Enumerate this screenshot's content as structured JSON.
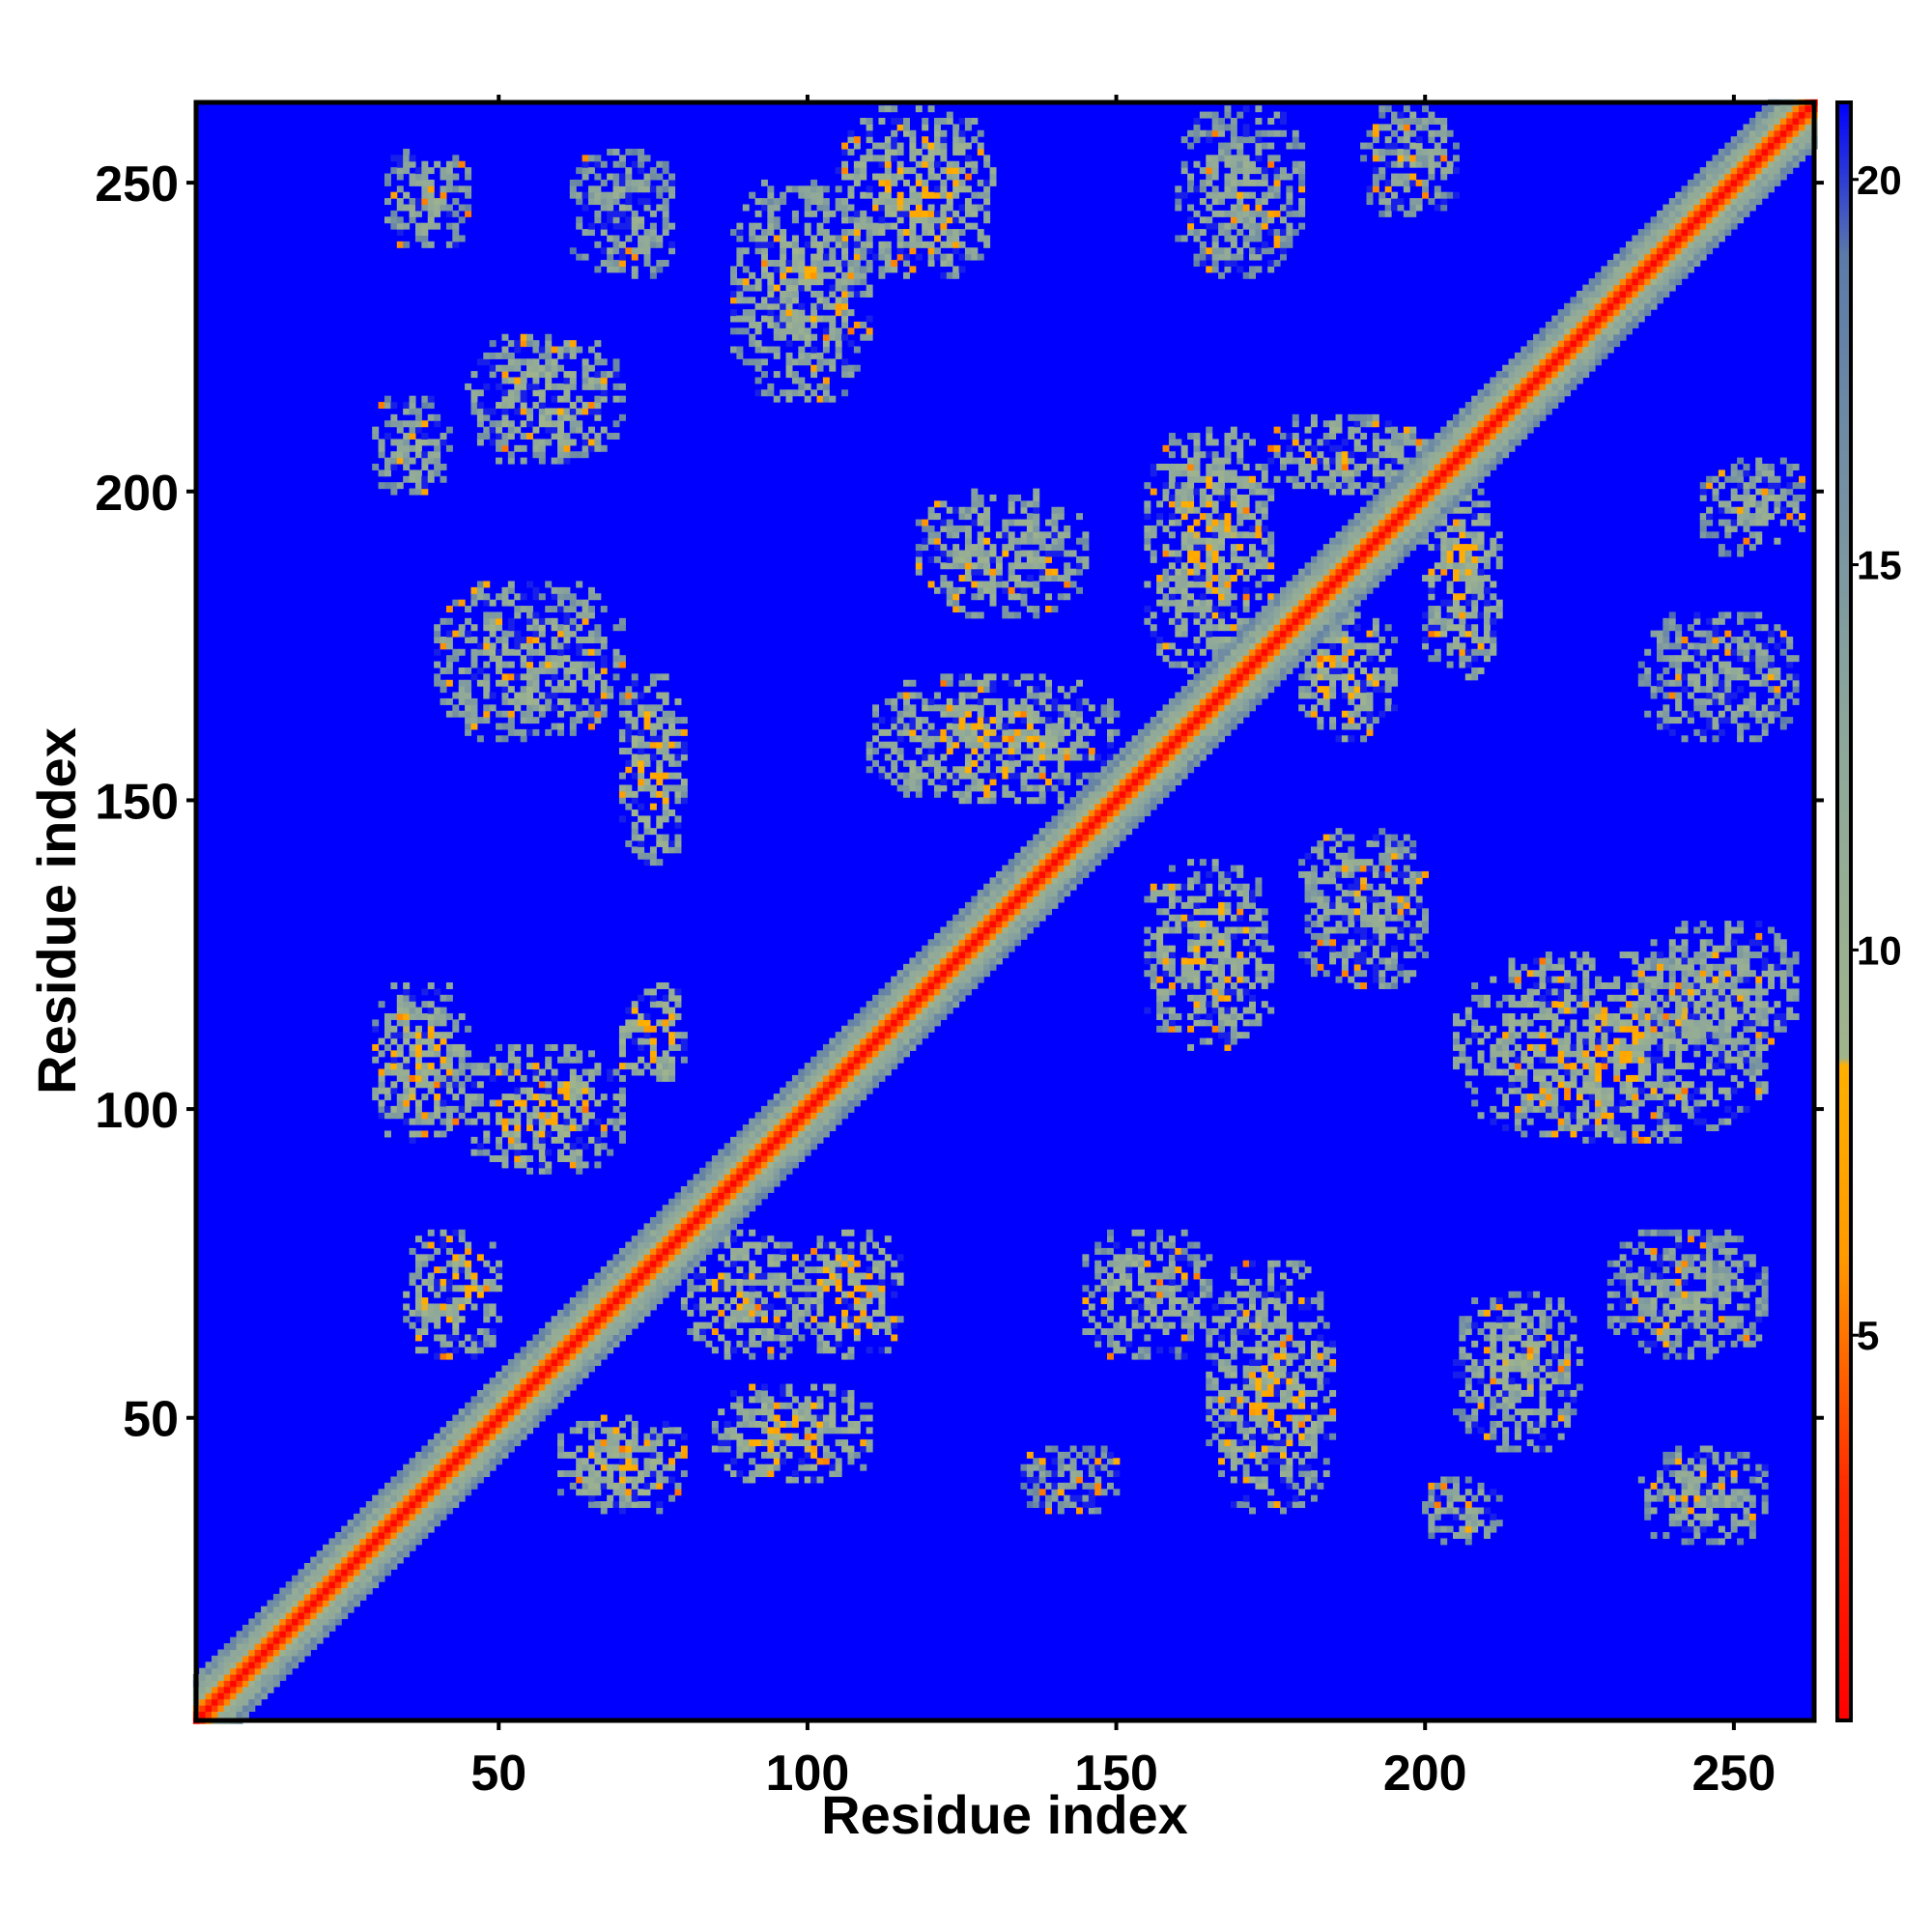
{
  "chart_data": {
    "type": "heatmap",
    "title": "",
    "xlabel": "Residue index",
    "ylabel": "Residue index",
    "xlim": [
      1,
      263
    ],
    "ylim": [
      1,
      263
    ],
    "x_ticks": [
      50,
      100,
      150,
      200,
      250
    ],
    "y_ticks": [
      50,
      100,
      150,
      200,
      250
    ],
    "grid": false,
    "colorbar": {
      "ticks": [
        5,
        10,
        15,
        20
      ],
      "range": [
        0,
        21
      ],
      "stops": [
        {
          "value": 0,
          "color": "#ff0000"
        },
        {
          "value": 3,
          "color": "#ff2a00"
        },
        {
          "value": 6,
          "color": "#ff9900"
        },
        {
          "value": 8.5,
          "color": "#ffb000"
        },
        {
          "value": 8.6,
          "color": "#a0b48c"
        },
        {
          "value": 13,
          "color": "#8ca69c"
        },
        {
          "value": 19,
          "color": "#5c7aa8"
        },
        {
          "value": 21,
          "color": "#0000ff"
        }
      ]
    },
    "background_color": "#0000ff",
    "contact_regions": [
      {
        "x": [
          40,
          70
        ],
        "y": [
          160,
          185
        ],
        "level": 11
      },
      {
        "x": [
          70,
          80
        ],
        "y": [
          140,
          170
        ],
        "level": 10
      },
      {
        "x": [
          30,
          45
        ],
        "y": [
          95,
          120
        ],
        "level": 10
      },
      {
        "x": [
          45,
          70
        ],
        "y": [
          90,
          110
        ],
        "level": 10
      },
      {
        "x": [
          70,
          80
        ],
        "y": [
          105,
          120
        ],
        "level": 9
      },
      {
        "x": [
          80,
          100
        ],
        "y": [
          60,
          80
        ],
        "level": 10
      },
      {
        "x": [
          100,
          115
        ],
        "y": [
          60,
          80
        ],
        "level": 9
      },
      {
        "x": [
          60,
          80
        ],
        "y": [
          35,
          50
        ],
        "level": 10
      },
      {
        "x": [
          85,
          110
        ],
        "y": [
          40,
          55
        ],
        "level": 10
      },
      {
        "x": [
          35,
          50
        ],
        "y": [
          60,
          80
        ],
        "level": 10
      },
      {
        "x": [
          88,
          110
        ],
        "y": [
          215,
          250
        ],
        "level": 11
      },
      {
        "x": [
          105,
          130
        ],
        "y": [
          235,
          262
        ],
        "level": 10
      },
      {
        "x": [
          45,
          70
        ],
        "y": [
          205,
          225
        ],
        "level": 11
      },
      {
        "x": [
          30,
          42
        ],
        "y": [
          200,
          215
        ],
        "level": 12
      },
      {
        "x": [
          32,
          45
        ],
        "y": [
          240,
          255
        ],
        "level": 12
      },
      {
        "x": [
          62,
          78
        ],
        "y": [
          235,
          255
        ],
        "level": 12
      },
      {
        "x": [
          118,
          145
        ],
        "y": [
          180,
          200
        ],
        "level": 11
      },
      {
        "x": [
          110,
          150
        ],
        "y": [
          150,
          170
        ],
        "level": 10
      },
      {
        "x": [
          155,
          175
        ],
        "y": [
          170,
          210
        ],
        "level": 10
      },
      {
        "x": [
          175,
          200
        ],
        "y": [
          200,
          212
        ],
        "level": 11
      },
      {
        "x": [
          200,
          212
        ],
        "y": [
          170,
          200
        ],
        "level": 10
      },
      {
        "x": [
          180,
          195
        ],
        "y": [
          160,
          180
        ],
        "level": 10
      },
      {
        "x": [
          155,
          175
        ],
        "y": [
          110,
          140
        ],
        "level": 10
      },
      {
        "x": [
          180,
          200
        ],
        "y": [
          120,
          145
        ],
        "level": 11
      },
      {
        "x": [
          145,
          165
        ],
        "y": [
          60,
          80
        ],
        "level": 11
      },
      {
        "x": [
          165,
          185
        ],
        "y": [
          35,
          75
        ],
        "level": 10
      },
      {
        "x": [
          205,
          225
        ],
        "y": [
          45,
          70
        ],
        "level": 11
      },
      {
        "x": [
          205,
          255
        ],
        "y": [
          95,
          125
        ],
        "level": 10
      },
      {
        "x": [
          235,
          260
        ],
        "y": [
          110,
          130
        ],
        "level": 11
      },
      {
        "x": [
          235,
          260
        ],
        "y": [
          160,
          180
        ],
        "level": 12
      },
      {
        "x": [
          245,
          262
        ],
        "y": [
          190,
          205
        ],
        "level": 12
      },
      {
        "x": [
          160,
          180
        ],
        "y": [
          235,
          262
        ],
        "level": 12
      },
      {
        "x": [
          190,
          205
        ],
        "y": [
          245,
          262
        ],
        "level": 12
      },
      {
        "x": [
          230,
          255
        ],
        "y": [
          60,
          80
        ],
        "level": 12
      },
      {
        "x": [
          235,
          255
        ],
        "y": [
          30,
          45
        ],
        "level": 12
      },
      {
        "x": [
          200,
          212
        ],
        "y": [
          30,
          40
        ],
        "level": 12
      },
      {
        "x": [
          135,
          150
        ],
        "y": [
          35,
          45
        ],
        "level": 13
      }
    ]
  }
}
